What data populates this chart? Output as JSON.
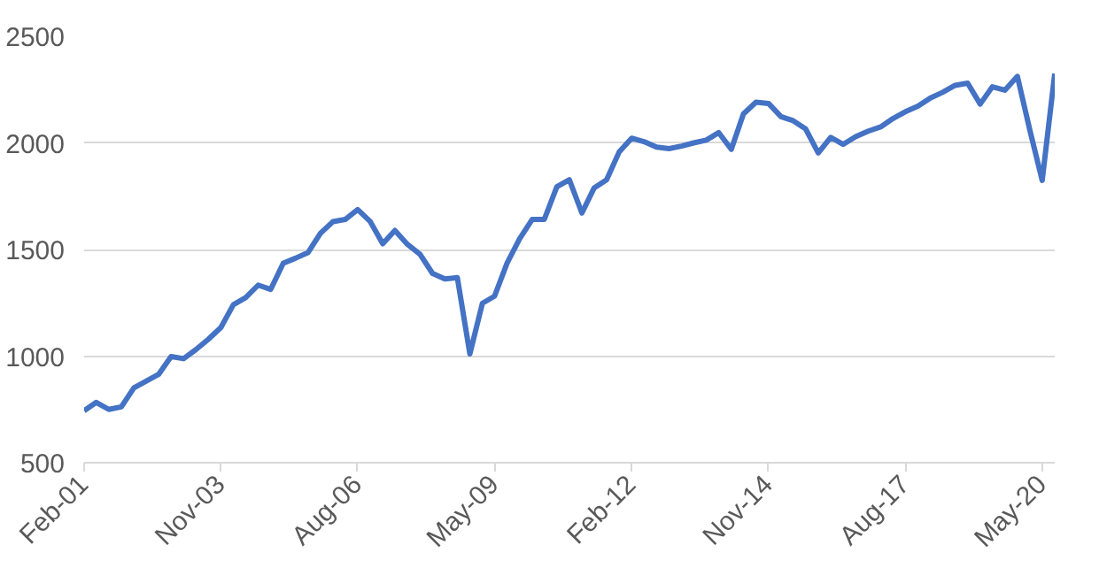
{
  "chart_data": {
    "type": "line",
    "x": [
      "2001-02",
      "2001-05",
      "2001-08",
      "2001-11",
      "2002-02",
      "2002-05",
      "2002-08",
      "2002-11",
      "2003-02",
      "2003-05",
      "2003-08",
      "2003-11",
      "2004-02",
      "2004-05",
      "2004-08",
      "2004-11",
      "2005-02",
      "2005-05",
      "2005-08",
      "2005-11",
      "2006-02",
      "2006-05",
      "2006-08",
      "2006-11",
      "2007-02",
      "2007-05",
      "2007-08",
      "2007-11",
      "2008-02",
      "2008-05",
      "2008-08",
      "2008-11",
      "2009-02",
      "2009-05",
      "2009-08",
      "2009-11",
      "2010-02",
      "2010-05",
      "2010-08",
      "2010-11",
      "2011-02",
      "2011-05",
      "2011-08",
      "2011-11",
      "2012-02",
      "2012-05",
      "2012-08",
      "2012-11",
      "2013-02",
      "2013-05",
      "2013-08",
      "2013-11",
      "2014-02",
      "2014-05",
      "2014-08",
      "2014-11",
      "2015-02",
      "2015-05",
      "2015-08",
      "2015-11",
      "2016-02",
      "2016-05",
      "2016-08",
      "2016-11",
      "2017-02",
      "2017-05",
      "2017-08",
      "2017-11",
      "2018-02",
      "2018-05",
      "2018-08",
      "2018-11",
      "2019-02",
      "2019-05",
      "2019-08",
      "2019-11",
      "2020-02",
      "2020-05",
      "2020-08"
    ],
    "series": [
      {
        "color": "#4472c4",
        "values": [
          744,
          783,
          750,
          762,
          851,
          882,
          914,
          998,
          988,
          1030,
          1079,
          1134,
          1241,
          1274,
          1333,
          1313,
          1436,
          1459,
          1485,
          1576,
          1631,
          1641,
          1687,
          1631,
          1527,
          1589,
          1524,
          1478,
          1388,
          1362,
          1368,
          1010,
          1248,
          1281,
          1436,
          1550,
          1641,
          1641,
          1794,
          1827,
          1671,
          1788,
          1827,
          1957,
          2022,
          2006,
          1980,
          1973,
          1985,
          2000,
          2013,
          2048,
          1970,
          2136,
          2191,
          2185,
          2123,
          2104,
          2065,
          1953,
          2026,
          1993,
          2029,
          2055,
          2075,
          2114,
          2146,
          2172,
          2211,
          2237,
          2270,
          2280,
          2182,
          2263,
          2247,
          2312,
          2058,
          1824,
          2325
        ]
      }
    ],
    "xlim": [
      "2001-02",
      "2020-08"
    ],
    "xticks": [
      {
        "value": "2001-02",
        "label": "Feb-01"
      },
      {
        "value": "2003-11",
        "label": "Nov-03"
      },
      {
        "value": "2006-08",
        "label": "Aug-06"
      },
      {
        "value": "2009-05",
        "label": "May-09"
      },
      {
        "value": "2012-02",
        "label": "Feb-12"
      },
      {
        "value": "2014-11",
        "label": "Nov-14"
      },
      {
        "value": "2017-08",
        "label": "Aug-17"
      },
      {
        "value": "2020-05",
        "label": "May-20"
      }
    ],
    "ylim": [
      500,
      2500
    ],
    "yticks": [
      500,
      1000,
      1500,
      2000,
      2500
    ],
    "grid": "y",
    "marker": "none",
    "line_style": "solid"
  }
}
